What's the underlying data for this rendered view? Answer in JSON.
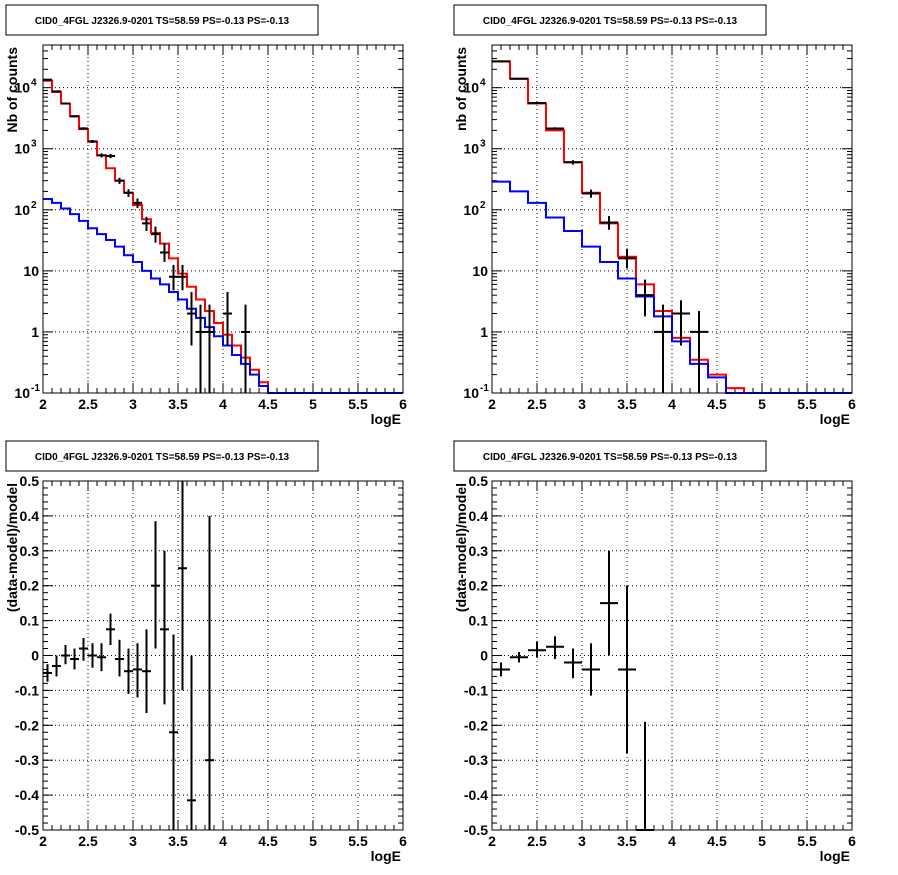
{
  "chart_data": [
    {
      "type": "line",
      "panel": "top-left",
      "title": "CID0_4FGL J2326.9-0201 TS=58.59 PS=-0.13 PS=-0.13",
      "xlabel": "logE",
      "ylabel": "Nb of counts",
      "xlim": [
        2,
        6
      ],
      "ylim": [
        0.1,
        50000
      ],
      "yscale": "log",
      "grid": true,
      "x_ticks": [
        "2",
        "2.5",
        "3",
        "3.5",
        "4",
        "4.5",
        "5",
        "5.5",
        "6"
      ],
      "y_ticks": [
        "10-1",
        "1",
        "10",
        "102",
        "103",
        "104"
      ],
      "series": [
        {
          "color": "#ff0000",
          "style": "step",
          "bin_edges": [
            2.0,
            2.1,
            2.2,
            2.3,
            2.4,
            2.5,
            2.6,
            2.7,
            2.8,
            2.9,
            3.0,
            3.1,
            3.2,
            3.3,
            3.4,
            3.5,
            3.6,
            3.7,
            3.8,
            3.9,
            4.0,
            4.1,
            4.2,
            4.3,
            4.4,
            4.5,
            4.6,
            4.7,
            4.8,
            4.9,
            5.0,
            5.1,
            5.2,
            5.3,
            5.4,
            5.5,
            5.6,
            5.7,
            5.8,
            5.9,
            6.0
          ],
          "values": [
            13000,
            8500,
            5500,
            3400,
            2100,
            1300,
            780,
            480,
            300,
            190,
            120,
            70,
            42,
            28,
            16,
            9,
            5.5,
            3.4,
            2.2,
            1.4,
            0.9,
            0.6,
            0.38,
            0.24,
            0.15,
            0.1,
            0.1,
            0.1,
            0.1,
            0.1,
            0.1,
            0.1,
            0.1,
            0.1,
            0.1,
            0.1,
            0.1,
            0.1,
            0.1,
            0.1
          ]
        },
        {
          "color": "#0000ff",
          "style": "step",
          "bin_edges": [
            2.0,
            2.1,
            2.2,
            2.3,
            2.4,
            2.5,
            2.6,
            2.7,
            2.8,
            2.9,
            3.0,
            3.1,
            3.2,
            3.3,
            3.4,
            3.5,
            3.6,
            3.7,
            3.8,
            3.9,
            4.0,
            4.1,
            4.2,
            4.3,
            4.4,
            4.5,
            4.6,
            4.7,
            4.8,
            4.9,
            5.0,
            5.1,
            5.2,
            5.3,
            5.4,
            5.5,
            5.6,
            5.7,
            5.8,
            5.9,
            6.0
          ],
          "values": [
            150,
            130,
            105,
            85,
            66,
            50,
            40,
            32,
            25,
            18,
            14,
            10,
            7.5,
            6,
            4.5,
            3.4,
            2.4,
            1.7,
            1.2,
            0.85,
            0.6,
            0.42,
            0.3,
            0.2,
            0.13,
            0.1,
            0.1,
            0.1,
            0.1,
            0.1,
            0.1,
            0.1,
            0.1,
            0.1,
            0.1,
            0.1,
            0.1,
            0.1,
            0.1,
            0.1
          ]
        },
        {
          "color": "#000000",
          "style": "errorbar",
          "points": [
            {
              "x": 2.05,
              "y": 13500,
              "ylo": 13270,
              "yhi": 13730,
              "xerr": 0.05
            },
            {
              "x": 2.15,
              "y": 8700,
              "ylo": 8510,
              "yhi": 8890,
              "xerr": 0.05
            },
            {
              "x": 2.25,
              "y": 5500,
              "ylo": 5350,
              "yhi": 5650,
              "xerr": 0.05
            },
            {
              "x": 2.35,
              "y": 3400,
              "ylo": 3280,
              "yhi": 3520,
              "xerr": 0.05
            },
            {
              "x": 2.45,
              "y": 2150,
              "ylo": 2055,
              "yhi": 2245,
              "xerr": 0.05
            },
            {
              "x": 2.55,
              "y": 1320,
              "ylo": 1245,
              "yhi": 1395,
              "xerr": 0.05
            },
            {
              "x": 2.65,
              "y": 780,
              "ylo": 720,
              "yhi": 840,
              "xerr": 0.05
            },
            {
              "x": 2.75,
              "y": 760,
              "ylo": 700,
              "yhi": 820,
              "xerr": 0.05
            },
            {
              "x": 2.85,
              "y": 300,
              "ylo": 265,
              "yhi": 335,
              "xerr": 0.05
            },
            {
              "x": 2.95,
              "y": 190,
              "ylo": 163,
              "yhi": 217,
              "xerr": 0.05
            },
            {
              "x": 3.05,
              "y": 130,
              "ylo": 107,
              "yhi": 153,
              "xerr": 0.05
            },
            {
              "x": 3.15,
              "y": 60,
              "ylo": 45,
              "yhi": 77,
              "xerr": 0.05
            },
            {
              "x": 3.25,
              "y": 40,
              "ylo": 29,
              "yhi": 53,
              "xerr": 0.05
            },
            {
              "x": 3.35,
              "y": 20,
              "ylo": 14,
              "yhi": 28,
              "xerr": 0.05
            },
            {
              "x": 3.45,
              "y": 8,
              "ylo": 4.8,
              "yhi": 12.5,
              "xerr": 0.05
            },
            {
              "x": 3.55,
              "y": 8,
              "ylo": 4.8,
              "yhi": 12.5,
              "xerr": 0.05
            },
            {
              "x": 3.65,
              "y": 2,
              "ylo": 0.6,
              "yhi": 4.5,
              "xerr": 0.05
            },
            {
              "x": 3.75,
              "y": 1,
              "ylo": 0.1,
              "yhi": 2.8,
              "xerr": 0.05
            },
            {
              "x": 3.85,
              "y": 1,
              "ylo": 0.1,
              "yhi": 2.8,
              "xerr": 0.05
            },
            {
              "x": 4.05,
              "y": 2,
              "ylo": 0.6,
              "yhi": 4.5,
              "xerr": 0.05
            },
            {
              "x": 4.25,
              "y": 1,
              "ylo": 0.1,
              "yhi": 2.8,
              "xerr": 0.05
            }
          ]
        }
      ]
    },
    {
      "type": "line",
      "panel": "top-right",
      "title": "CID0_4FGL J2326.9-0201 TS=58.59 PS=-0.13 PS=-0.13",
      "xlabel": "logE",
      "ylabel": "nb of counts",
      "xlim": [
        2,
        6
      ],
      "ylim": [
        0.1,
        50000
      ],
      "yscale": "log",
      "grid": true,
      "x_ticks": [
        "2",
        "2.5",
        "3",
        "3.5",
        "4",
        "4.5",
        "5",
        "5.5",
        "6"
      ],
      "y_ticks": [
        "10-1",
        "1",
        "10",
        "102",
        "103",
        "104"
      ],
      "series": [
        {
          "color": "#ff0000",
          "style": "step",
          "bin_edges": [
            2.0,
            2.2,
            2.4,
            2.6,
            2.8,
            3.0,
            3.2,
            3.4,
            3.6,
            3.8,
            4.0,
            4.2,
            4.4,
            4.6,
            4.8,
            5.0,
            5.2,
            5.4,
            5.6,
            5.8,
            6.0
          ],
          "values": [
            27000,
            14000,
            5500,
            2000,
            600,
            190,
            60,
            17,
            6,
            2.2,
            0.8,
            0.35,
            0.2,
            0.12,
            0.1,
            0.1,
            0.1,
            0.1,
            0.1,
            0.1
          ]
        },
        {
          "color": "#0000ff",
          "style": "step",
          "bin_edges": [
            2.0,
            2.2,
            2.4,
            2.6,
            2.8,
            3.0,
            3.2,
            3.4,
            3.6,
            3.8,
            4.0,
            4.2,
            4.4,
            4.6,
            4.8,
            5.0,
            5.2,
            5.4,
            5.6,
            5.8,
            6.0
          ],
          "values": [
            290,
            200,
            130,
            75,
            45,
            25,
            14,
            7.5,
            3.8,
            1.8,
            0.7,
            0.3,
            0.18,
            0.1,
            0.1,
            0.1,
            0.1,
            0.1,
            0.1,
            0.1
          ]
        },
        {
          "color": "#000000",
          "style": "errorbar",
          "points": [
            {
              "x": 2.1,
              "y": 27000,
              "ylo": 26700,
              "yhi": 27300,
              "xerr": 0.1
            },
            {
              "x": 2.3,
              "y": 14000,
              "ylo": 13750,
              "yhi": 14250,
              "xerr": 0.1
            },
            {
              "x": 2.5,
              "y": 5600,
              "ylo": 5440,
              "yhi": 5760,
              "xerr": 0.1
            },
            {
              "x": 2.7,
              "y": 2150,
              "ylo": 2050,
              "yhi": 2250,
              "xerr": 0.1
            },
            {
              "x": 2.9,
              "y": 600,
              "ylo": 550,
              "yhi": 650,
              "xerr": 0.1
            },
            {
              "x": 3.1,
              "y": 185,
              "ylo": 158,
              "yhi": 214,
              "xerr": 0.1
            },
            {
              "x": 3.3,
              "y": 62,
              "ylo": 47,
              "yhi": 79,
              "xerr": 0.1
            },
            {
              "x": 3.5,
              "y": 16,
              "ylo": 11,
              "yhi": 23,
              "xerr": 0.1
            },
            {
              "x": 3.7,
              "y": 4,
              "ylo": 1.8,
              "yhi": 7.2,
              "xerr": 0.1
            },
            {
              "x": 3.9,
              "y": 1,
              "ylo": 0.1,
              "yhi": 2.8,
              "xerr": 0.1
            },
            {
              "x": 4.1,
              "y": 2,
              "ylo": 0.6,
              "yhi": 3.3,
              "xerr": 0.1
            },
            {
              "x": 4.3,
              "y": 1,
              "ylo": 0.1,
              "yhi": 2.2,
              "xerr": 0.1
            }
          ]
        }
      ]
    },
    {
      "type": "scatter",
      "panel": "bottom-left",
      "title": "CID0_4FGL J2326.9-0201 TS=58.59 PS=-0.13 PS=-0.13",
      "xlabel": "logE",
      "ylabel": "(data-model)/model",
      "xlim": [
        2,
        6
      ],
      "ylim": [
        -0.5,
        0.5
      ],
      "grid": true,
      "x_ticks": [
        "2",
        "2.5",
        "3",
        "3.5",
        "4",
        "4.5",
        "5",
        "5.5",
        "6"
      ],
      "y_ticks": [
        "-0.5",
        "-0.4",
        "-0.3",
        "-0.2",
        "-0.1",
        "0",
        "0.1",
        "0.2",
        "0.3",
        "0.4",
        "0.5"
      ],
      "series": [
        {
          "color": "#000000",
          "style": "errorbar",
          "points": [
            {
              "x": 2.05,
              "y": -0.05,
              "ylo": -0.075,
              "yhi": -0.025,
              "xerr": 0.05
            },
            {
              "x": 2.15,
              "y": -0.03,
              "ylo": -0.06,
              "yhi": 0.0,
              "xerr": 0.05
            },
            {
              "x": 2.25,
              "y": 0.0,
              "ylo": -0.025,
              "yhi": 0.03,
              "xerr": 0.05
            },
            {
              "x": 2.35,
              "y": -0.01,
              "ylo": -0.04,
              "yhi": 0.02,
              "xerr": 0.05
            },
            {
              "x": 2.45,
              "y": 0.02,
              "ylo": -0.015,
              "yhi": 0.05,
              "xerr": 0.05
            },
            {
              "x": 2.55,
              "y": 0.0,
              "ylo": -0.035,
              "yhi": 0.035,
              "xerr": 0.05
            },
            {
              "x": 2.65,
              "y": -0.005,
              "ylo": -0.045,
              "yhi": 0.035,
              "xerr": 0.05
            },
            {
              "x": 2.75,
              "y": 0.075,
              "ylo": 0.03,
              "yhi": 0.12,
              "xerr": 0.05
            },
            {
              "x": 2.85,
              "y": -0.01,
              "ylo": -0.06,
              "yhi": 0.045,
              "xerr": 0.05
            },
            {
              "x": 2.95,
              "y": -0.045,
              "ylo": -0.11,
              "yhi": 0.02,
              "xerr": 0.05
            },
            {
              "x": 3.05,
              "y": -0.04,
              "ylo": -0.12,
              "yhi": 0.035,
              "xerr": 0.05
            },
            {
              "x": 3.15,
              "y": -0.045,
              "ylo": -0.165,
              "yhi": 0.075,
              "xerr": 0.05
            },
            {
              "x": 3.25,
              "y": 0.2,
              "ylo": 0.02,
              "yhi": 0.385,
              "xerr": 0.05
            },
            {
              "x": 3.35,
              "y": 0.075,
              "ylo": -0.14,
              "yhi": 0.3,
              "xerr": 0.05
            },
            {
              "x": 3.45,
              "y": -0.22,
              "ylo": -0.5,
              "yhi": 0.06,
              "xerr": 0.05
            },
            {
              "x": 3.55,
              "y": 0.25,
              "ylo": -0.1,
              "yhi": 0.5,
              "xerr": 0.05
            },
            {
              "x": 3.65,
              "y": -0.415,
              "ylo": -0.5,
              "yhi": 0.0,
              "xerr": 0.05
            },
            {
              "x": 3.85,
              "y": -0.3,
              "ylo": -0.5,
              "yhi": 0.4,
              "xerr": 0.05
            }
          ]
        }
      ]
    },
    {
      "type": "scatter",
      "panel": "bottom-right",
      "title": "CID0_4FGL J2326.9-0201 TS=58.59 PS=-0.13 PS=-0.13",
      "xlabel": "logE",
      "ylabel": "(data-model)/model",
      "xlim": [
        2,
        6
      ],
      "ylim": [
        -0.5,
        0.5
      ],
      "grid": true,
      "x_ticks": [
        "2",
        "2.5",
        "3",
        "3.5",
        "4",
        "4.5",
        "5",
        "5.5",
        "6"
      ],
      "y_ticks": [
        "-0.5",
        "-0.4",
        "-0.3",
        "-0.2",
        "-0.1",
        "0",
        "0.1",
        "0.2",
        "0.3",
        "0.4",
        "0.5"
      ],
      "series": [
        {
          "color": "#000000",
          "style": "errorbar",
          "points": [
            {
              "x": 2.1,
              "y": -0.04,
              "ylo": -0.06,
              "yhi": -0.02,
              "xerr": 0.1
            },
            {
              "x": 2.3,
              "y": -0.005,
              "ylo": -0.02,
              "yhi": 0.01,
              "xerr": 0.1
            },
            {
              "x": 2.5,
              "y": 0.015,
              "ylo": -0.005,
              "yhi": 0.04,
              "xerr": 0.1
            },
            {
              "x": 2.7,
              "y": 0.025,
              "ylo": -0.01,
              "yhi": 0.055,
              "xerr": 0.1
            },
            {
              "x": 2.9,
              "y": -0.02,
              "ylo": -0.065,
              "yhi": 0.02,
              "xerr": 0.1
            },
            {
              "x": 3.1,
              "y": -0.04,
              "ylo": -0.115,
              "yhi": 0.035,
              "xerr": 0.1
            },
            {
              "x": 3.3,
              "y": 0.15,
              "ylo": 0.0,
              "yhi": 0.3,
              "xerr": 0.1
            },
            {
              "x": 3.5,
              "y": -0.04,
              "ylo": -0.28,
              "yhi": 0.2,
              "xerr": 0.1
            },
            {
              "x": 3.7,
              "y": -0.5,
              "ylo": -0.5,
              "yhi": -0.19,
              "xerr": 0.1
            }
          ]
        }
      ]
    }
  ]
}
